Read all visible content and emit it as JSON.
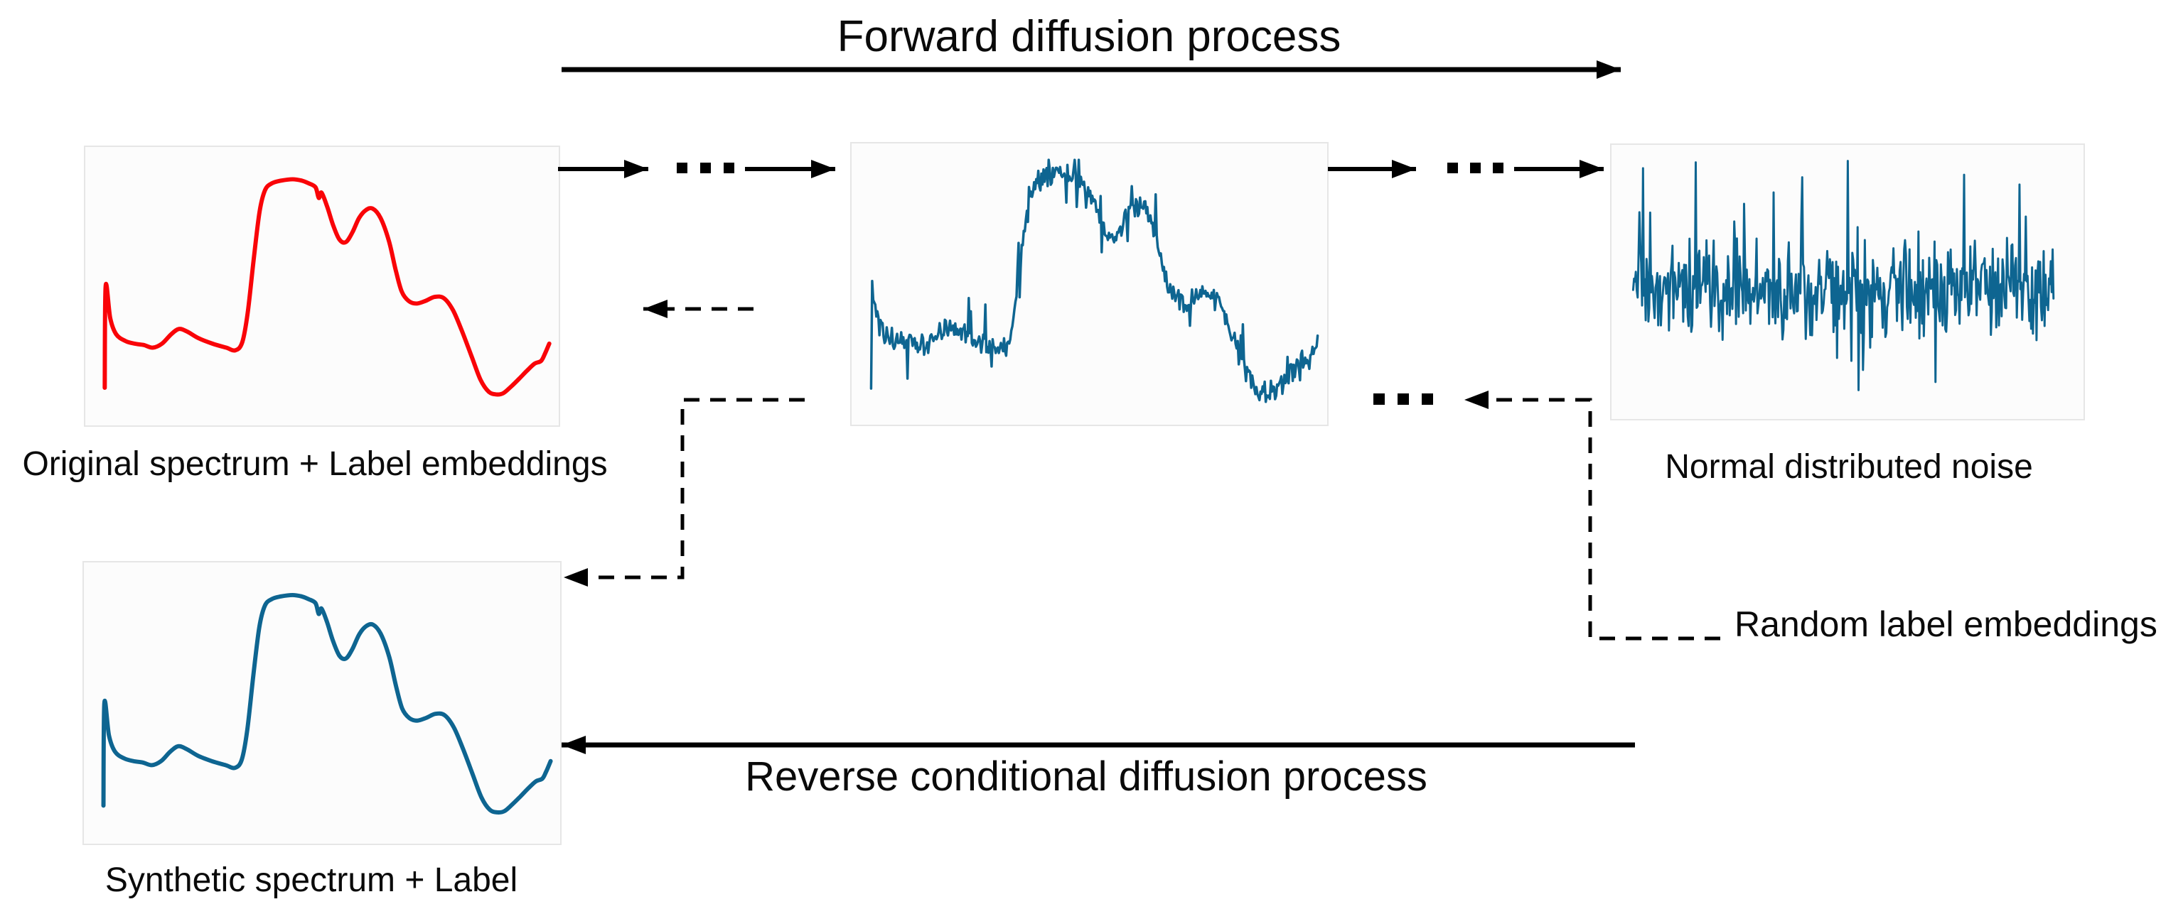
{
  "titles": {
    "forward": "Forward diffusion process",
    "reverse": "Reverse conditional diffusion process"
  },
  "labels": {
    "original": "Original spectrum + Label embeddings",
    "noise": "Normal distributed noise",
    "random": "Random label embeddings",
    "synthetic": "Synthetic spectrum + Label"
  },
  "colors": {
    "red": "#f90408",
    "teal": "#0e6591",
    "black": "#000000",
    "panel_border": "#e6e6e6",
    "panel_bg": "#fcfcfc"
  },
  "chart_data": [
    {
      "id": "original-spectrum",
      "type": "line",
      "mode": "clean",
      "color_key": "red",
      "title": "Original spectrum + Label embeddings",
      "axes": "hidden",
      "x_range": [
        0,
        1
      ],
      "y_range": [
        0,
        1
      ],
      "stroke_width": 6,
      "points": [
        [
          0.03,
          0.88
        ],
        [
          0.032,
          0.5
        ],
        [
          0.042,
          0.62
        ],
        [
          0.055,
          0.68
        ],
        [
          0.075,
          0.705
        ],
        [
          0.095,
          0.715
        ],
        [
          0.115,
          0.72
        ],
        [
          0.135,
          0.73
        ],
        [
          0.155,
          0.715
        ],
        [
          0.175,
          0.68
        ],
        [
          0.192,
          0.66
        ],
        [
          0.21,
          0.67
        ],
        [
          0.235,
          0.695
        ],
        [
          0.265,
          0.715
        ],
        [
          0.295,
          0.73
        ],
        [
          0.315,
          0.74
        ],
        [
          0.33,
          0.71
        ],
        [
          0.342,
          0.6
        ],
        [
          0.355,
          0.4
        ],
        [
          0.368,
          0.22
        ],
        [
          0.38,
          0.14
        ],
        [
          0.395,
          0.115
        ],
        [
          0.415,
          0.105
        ],
        [
          0.44,
          0.1
        ],
        [
          0.46,
          0.105
        ],
        [
          0.475,
          0.115
        ],
        [
          0.49,
          0.13
        ],
        [
          0.497,
          0.17
        ],
        [
          0.503,
          0.15
        ],
        [
          0.515,
          0.2
        ],
        [
          0.528,
          0.27
        ],
        [
          0.542,
          0.325
        ],
        [
          0.556,
          0.335
        ],
        [
          0.57,
          0.3
        ],
        [
          0.585,
          0.245
        ],
        [
          0.6,
          0.215
        ],
        [
          0.615,
          0.21
        ],
        [
          0.632,
          0.245
        ],
        [
          0.65,
          0.33
        ],
        [
          0.665,
          0.44
        ],
        [
          0.678,
          0.52
        ],
        [
          0.693,
          0.555
        ],
        [
          0.71,
          0.565
        ],
        [
          0.73,
          0.555
        ],
        [
          0.75,
          0.54
        ],
        [
          0.77,
          0.545
        ],
        [
          0.79,
          0.59
        ],
        [
          0.81,
          0.67
        ],
        [
          0.83,
          0.76
        ],
        [
          0.85,
          0.85
        ],
        [
          0.868,
          0.895
        ],
        [
          0.885,
          0.905
        ],
        [
          0.9,
          0.9
        ],
        [
          0.917,
          0.875
        ],
        [
          0.935,
          0.845
        ],
        [
          0.952,
          0.815
        ],
        [
          0.968,
          0.79
        ],
        [
          0.982,
          0.78
        ],
        [
          0.99,
          0.755
        ],
        [
          1.0,
          0.715
        ]
      ]
    },
    {
      "id": "noised-spectrum",
      "type": "line",
      "mode": "noisy",
      "color_key": "teal",
      "title": "Partially noised spectrum (intermediate diffusion step)",
      "axes": "hidden",
      "base": "original-spectrum",
      "stroke_width": 3.5,
      "noise": {
        "seed": 20,
        "n": 430,
        "amp": 0.05,
        "spike_prob": 0.06,
        "spike_amp": 0.16
      }
    },
    {
      "id": "normal-noise",
      "type": "line",
      "mode": "noise",
      "color_key": "teal",
      "title": "Normal distributed noise",
      "axes": "hidden",
      "stroke_width": 3,
      "noise": {
        "seed": 42,
        "n": 470,
        "center": 0.52,
        "sigma": 0.105,
        "spike_prob": 0.06,
        "spike_amp": 0.45
      },
      "forced_spikes": [
        [
          0.335,
          0.16
        ],
        [
          0.52,
          0.8
        ],
        [
          0.72,
          0.88
        ],
        [
          0.92,
          0.13
        ]
      ]
    },
    {
      "id": "synthetic-spectrum",
      "type": "line",
      "mode": "clean",
      "color_key": "teal",
      "title": "Synthetic spectrum + Label",
      "axes": "hidden",
      "base": "original-spectrum",
      "stroke_width": 6
    }
  ]
}
